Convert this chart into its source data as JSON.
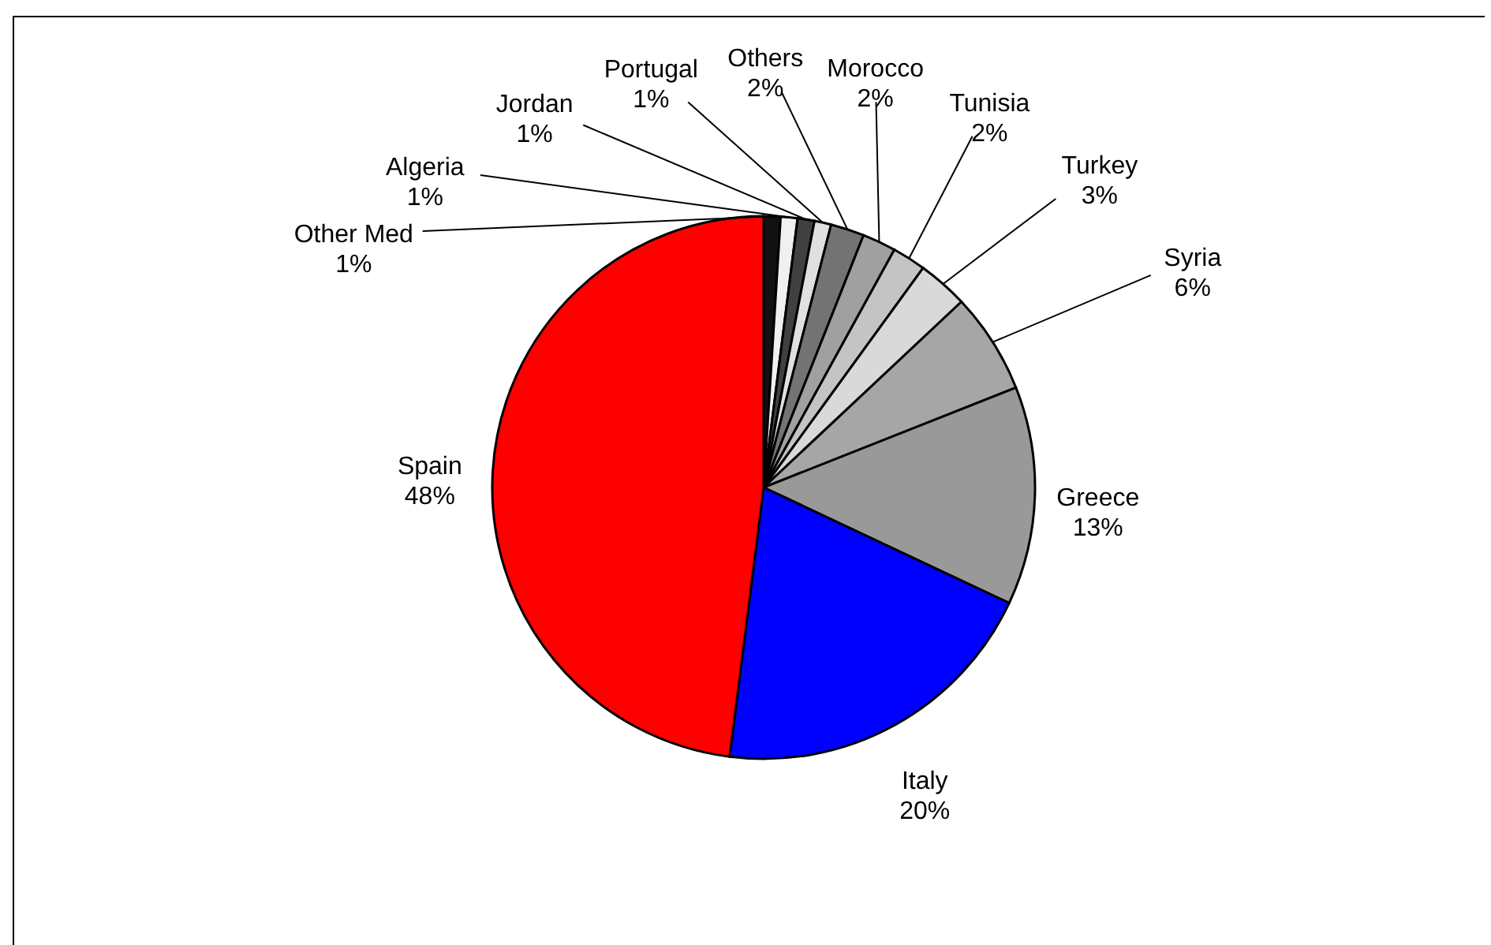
{
  "chart_data": {
    "type": "pie",
    "categories": [
      "Other Med",
      "Algeria",
      "Jordan",
      "Portugal",
      "Others",
      "Morocco",
      "Tunisia",
      "Turkey",
      "Syria",
      "Greece",
      "Italy",
      "Spain"
    ],
    "values": [
      1,
      1,
      1,
      1,
      2,
      2,
      2,
      3,
      6,
      13,
      20,
      48
    ],
    "colors": [
      "#111111",
      "#f0f0f0",
      "#404040",
      "#e0e0e0",
      "#737373",
      "#a0a0a0",
      "#c4c4c4",
      "#d9d9d9",
      "#a6a6a6",
      "#999999",
      "#0000ff",
      "#ff0000"
    ],
    "value_labels": [
      "1%",
      "1%",
      "1%",
      "1%",
      "2%",
      "2%",
      "2%",
      "3%",
      "6%",
      "13%",
      "20%",
      "48%"
    ]
  }
}
